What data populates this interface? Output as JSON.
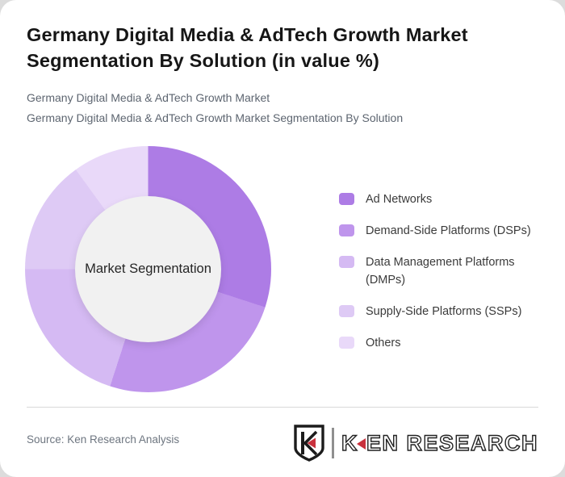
{
  "page": {
    "background_color": "#dcdcdc",
    "card_background_color": "#ffffff"
  },
  "header": {
    "title": "Germany Digital Media & AdTech Growth Market Segmentation By Solution (in value %)",
    "subtitle_line1": "Germany Digital Media & AdTech Growth Market",
    "subtitle_line2": "Germany Digital Media & AdTech Growth Market Segmentation By Solution"
  },
  "chart_data": {
    "type": "pie",
    "subtype": "donut",
    "title": "Germany Digital Media & AdTech Growth Market Segmentation By Solution (in value %)",
    "center_label": "Market Segmentation",
    "unit": "%",
    "labels": [
      "Ad Networks",
      "Demand-Side Platforms (DSPs)",
      "Data Management Platforms (DMPs)",
      "Supply-Side Platforms (SSPs)",
      "Others"
    ],
    "values": [
      30,
      25,
      20,
      15,
      10
    ],
    "colors": [
      "#ad7ce5",
      "#bf95ec",
      "#d5baf3",
      "#decaf5",
      "#e9d9f9"
    ],
    "inner_circle_color": "#f1f1f1",
    "start_angle_deg": 0,
    "direction": "clockwise",
    "legend_position": "right",
    "grid": false
  },
  "footer": {
    "source": "Source: Ken Research Analysis",
    "brand": {
      "shield_letter": "K",
      "name_first_letter": "K",
      "name_rest": "EN RESEARCH",
      "accent_color": "#c9313d"
    }
  }
}
